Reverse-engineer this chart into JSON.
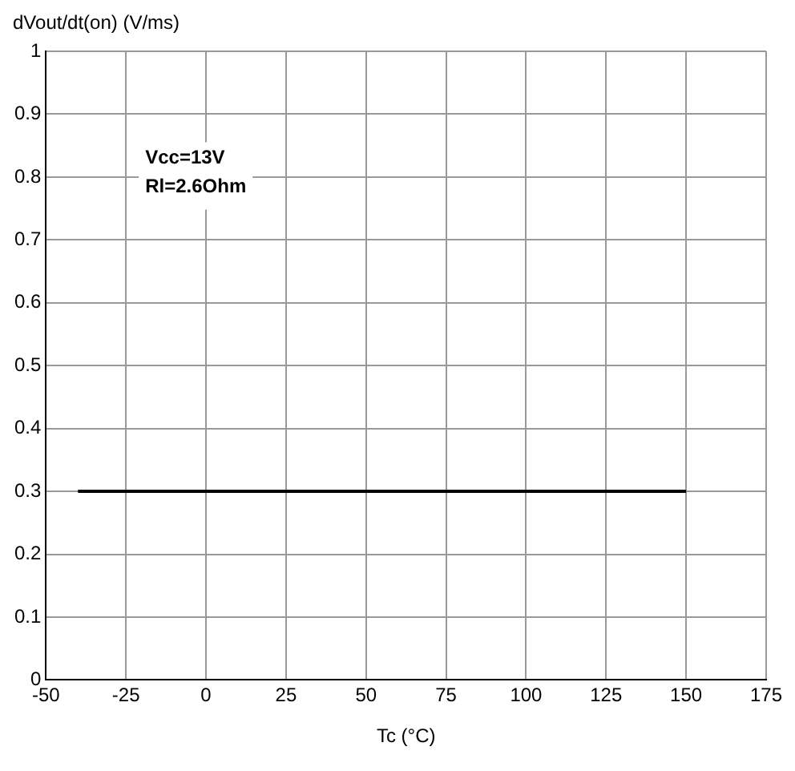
{
  "chart_data": {
    "type": "line",
    "xlabel": "Tc (°C)",
    "ylabel": "dVout/dt(on) (V/ms)",
    "annotations": [
      "Vcc=13V",
      "Rl=2.6Ohm"
    ],
    "x": [
      -40,
      150
    ],
    "series": [
      {
        "color": "#000000",
        "values": [
          0.3,
          0.3
        ]
      }
    ],
    "xlim": [
      -50,
      175
    ],
    "xticks": [
      -50,
      -25,
      0,
      25,
      50,
      75,
      100,
      125,
      150,
      175
    ],
    "ylim": [
      0,
      1
    ],
    "yticks": [
      0,
      0.1,
      0.2,
      0.3,
      0.4,
      0.5,
      0.6,
      0.7,
      0.8,
      0.9,
      1
    ],
    "grid": true,
    "legend": false,
    "marker": "none",
    "line_style": "solid"
  }
}
